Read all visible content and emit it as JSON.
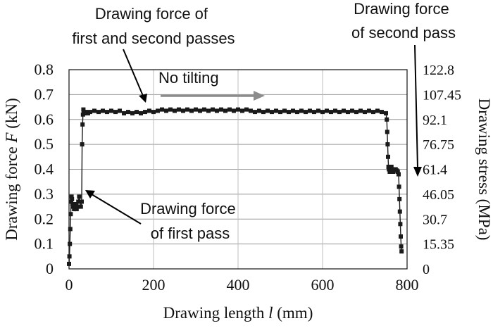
{
  "chart_data": {
    "type": "scatter",
    "xlabel": {
      "prefix": "Drawing length ",
      "variable": "l",
      "suffix": " (mm)"
    },
    "ylabel_left": {
      "prefix": "Drawing force ",
      "variable": "F",
      "suffix": " (kN)"
    },
    "ylabel_right": "Drawing stress (MPa)",
    "xlim": [
      0,
      800
    ],
    "ylim": [
      0,
      0.8
    ],
    "x_ticks": [
      "0",
      "200",
      "400",
      "600",
      "800"
    ],
    "y_ticks_left": [
      "0",
      "0.1",
      "0.2",
      "0.3",
      "0.4",
      "0.5",
      "0.6",
      "0.7",
      "0.8"
    ],
    "y_ticks_right": [
      "0",
      "15.35",
      "30.7",
      "46.05",
      "61.4",
      "76.75",
      "92.1",
      "107.45",
      "122.8"
    ],
    "grid": true,
    "series_color": "#1a1a1a",
    "annotations": {
      "first_and_second": [
        "Drawing force of",
        "first and second passes"
      ],
      "second_pass": [
        "Drawing force",
        "of second pass"
      ],
      "first_pass": [
        "Drawing force",
        "of first pass"
      ],
      "no_tilting": "No tilting"
    },
    "arrow_color": "#8c8c8c",
    "series": [
      {
        "points": [
          [
            0,
            0.02
          ],
          [
            1,
            0.05
          ],
          [
            2,
            0.1
          ],
          [
            3,
            0.16
          ],
          [
            4,
            0.22
          ],
          [
            5,
            0.27
          ],
          [
            6,
            0.29
          ],
          [
            7,
            0.28
          ],
          [
            8,
            0.26
          ],
          [
            10,
            0.25
          ],
          [
            12,
            0.24
          ],
          [
            14,
            0.25
          ],
          [
            16,
            0.26
          ],
          [
            18,
            0.24
          ],
          [
            20,
            0.25
          ],
          [
            22,
            0.27
          ],
          [
            24,
            0.29
          ],
          [
            26,
            0.27
          ],
          [
            28,
            0.25
          ],
          [
            30,
            0.27
          ],
          [
            31,
            0.5
          ],
          [
            32,
            0.58
          ],
          [
            33,
            0.62
          ],
          [
            34,
            0.64
          ],
          [
            35,
            0.63
          ],
          [
            37,
            0.625
          ],
          [
            40,
            0.63
          ],
          [
            45,
            0.625
          ],
          [
            50,
            0.63
          ],
          [
            60,
            0.635
          ],
          [
            70,
            0.63
          ],
          [
            80,
            0.635
          ],
          [
            90,
            0.63
          ],
          [
            100,
            0.635
          ],
          [
            110,
            0.63
          ],
          [
            120,
            0.635
          ],
          [
            130,
            0.625
          ],
          [
            140,
            0.63
          ],
          [
            150,
            0.625
          ],
          [
            160,
            0.63
          ],
          [
            170,
            0.625
          ],
          [
            180,
            0.63
          ],
          [
            190,
            0.635
          ],
          [
            200,
            0.63
          ],
          [
            210,
            0.635
          ],
          [
            220,
            0.64
          ],
          [
            230,
            0.635
          ],
          [
            240,
            0.64
          ],
          [
            250,
            0.635
          ],
          [
            260,
            0.64
          ],
          [
            270,
            0.635
          ],
          [
            280,
            0.64
          ],
          [
            290,
            0.635
          ],
          [
            300,
            0.64
          ],
          [
            310,
            0.635
          ],
          [
            320,
            0.64
          ],
          [
            330,
            0.635
          ],
          [
            340,
            0.64
          ],
          [
            350,
            0.635
          ],
          [
            360,
            0.64
          ],
          [
            370,
            0.635
          ],
          [
            380,
            0.64
          ],
          [
            390,
            0.635
          ],
          [
            400,
            0.64
          ],
          [
            410,
            0.635
          ],
          [
            420,
            0.64
          ],
          [
            430,
            0.635
          ],
          [
            440,
            0.63
          ],
          [
            450,
            0.635
          ],
          [
            460,
            0.63
          ],
          [
            470,
            0.635
          ],
          [
            480,
            0.63
          ],
          [
            490,
            0.635
          ],
          [
            500,
            0.63
          ],
          [
            510,
            0.635
          ],
          [
            520,
            0.63
          ],
          [
            530,
            0.635
          ],
          [
            540,
            0.63
          ],
          [
            550,
            0.635
          ],
          [
            560,
            0.63
          ],
          [
            570,
            0.635
          ],
          [
            580,
            0.63
          ],
          [
            590,
            0.635
          ],
          [
            600,
            0.63
          ],
          [
            610,
            0.635
          ],
          [
            620,
            0.63
          ],
          [
            630,
            0.635
          ],
          [
            640,
            0.63
          ],
          [
            650,
            0.635
          ],
          [
            660,
            0.63
          ],
          [
            670,
            0.635
          ],
          [
            680,
            0.63
          ],
          [
            690,
            0.635
          ],
          [
            700,
            0.63
          ],
          [
            710,
            0.635
          ],
          [
            720,
            0.63
          ],
          [
            730,
            0.635
          ],
          [
            740,
            0.63
          ],
          [
            750,
            0.625
          ],
          [
            752,
            0.6
          ],
          [
            753,
            0.55
          ],
          [
            754,
            0.5
          ],
          [
            755,
            0.45
          ],
          [
            756,
            0.41
          ],
          [
            757,
            0.4
          ],
          [
            759,
            0.39
          ],
          [
            761,
            0.4
          ],
          [
            763,
            0.41
          ],
          [
            765,
            0.4
          ],
          [
            767,
            0.39
          ],
          [
            770,
            0.395
          ],
          [
            773,
            0.4
          ],
          [
            776,
            0.395
          ],
          [
            778,
            0.39
          ],
          [
            780,
            0.38
          ],
          [
            781,
            0.33
          ],
          [
            782,
            0.28
          ],
          [
            783,
            0.23
          ],
          [
            784,
            0.18
          ],
          [
            785,
            0.13
          ],
          [
            786,
            0.09
          ],
          [
            787,
            0.07
          ]
        ]
      }
    ]
  }
}
